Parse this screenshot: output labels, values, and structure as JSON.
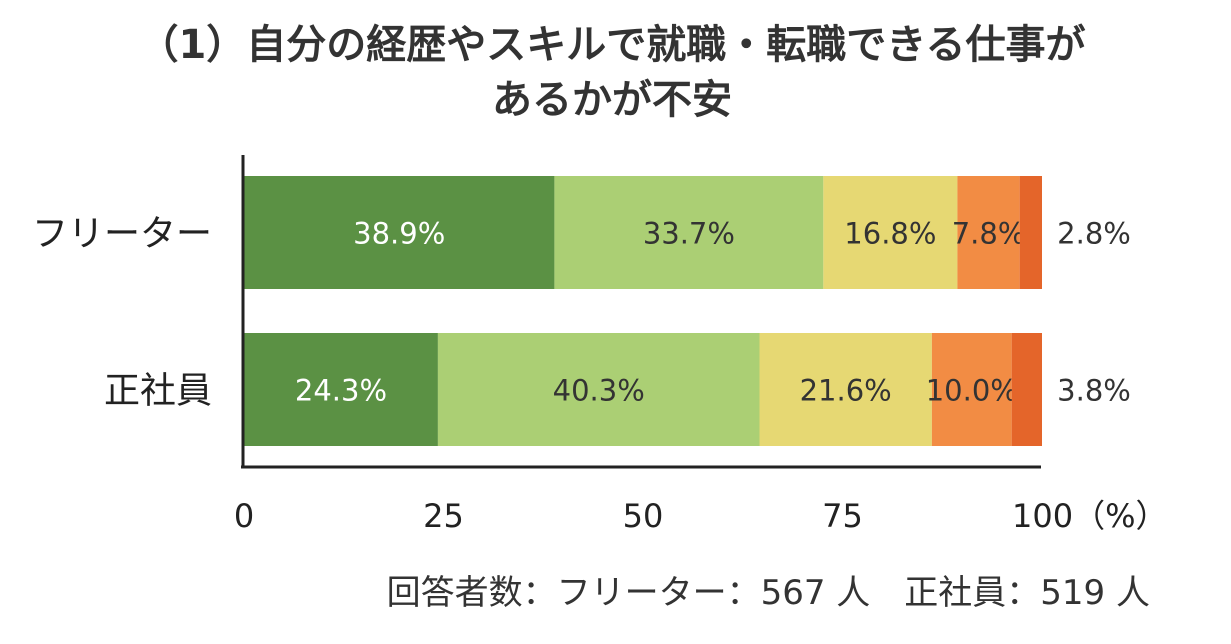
{
  "chart_data": {
    "type": "bar",
    "orientation": "horizontal",
    "stacked": true,
    "title_line1": "（1）自分の経歴やスキルで就職・転職できる仕事が",
    "title_line2": "あるかが不安",
    "categories": [
      "フリーター",
      "正社員"
    ],
    "series": [
      {
        "color": "#5b9144",
        "values": [
          38.9,
          24.3
        ],
        "labels": [
          "38.9%",
          "24.3%"
        ]
      },
      {
        "color": "#abcf74",
        "values": [
          33.7,
          40.3
        ],
        "labels": [
          "33.7%",
          "40.3%"
        ]
      },
      {
        "color": "#e6d873",
        "values": [
          16.8,
          21.6
        ],
        "labels": [
          "16.8%",
          "21.6%"
        ]
      },
      {
        "color": "#f28c44",
        "values": [
          7.8,
          10.0
        ],
        "labels": [
          "7.8%",
          "10.0%"
        ]
      },
      {
        "color": "#e4652a",
        "values": [
          2.8,
          3.8
        ],
        "labels": [
          "2.8%",
          "3.8%"
        ]
      }
    ],
    "xlim": [
      0,
      100
    ],
    "xticks": [
      "0",
      "25",
      "50",
      "75",
      "100（%）"
    ],
    "xtick_values": [
      0,
      25,
      50,
      75,
      100
    ],
    "grid": false,
    "legend": "none",
    "footnote": "回答者数：フリーター：567 人　正社員：519 人"
  }
}
